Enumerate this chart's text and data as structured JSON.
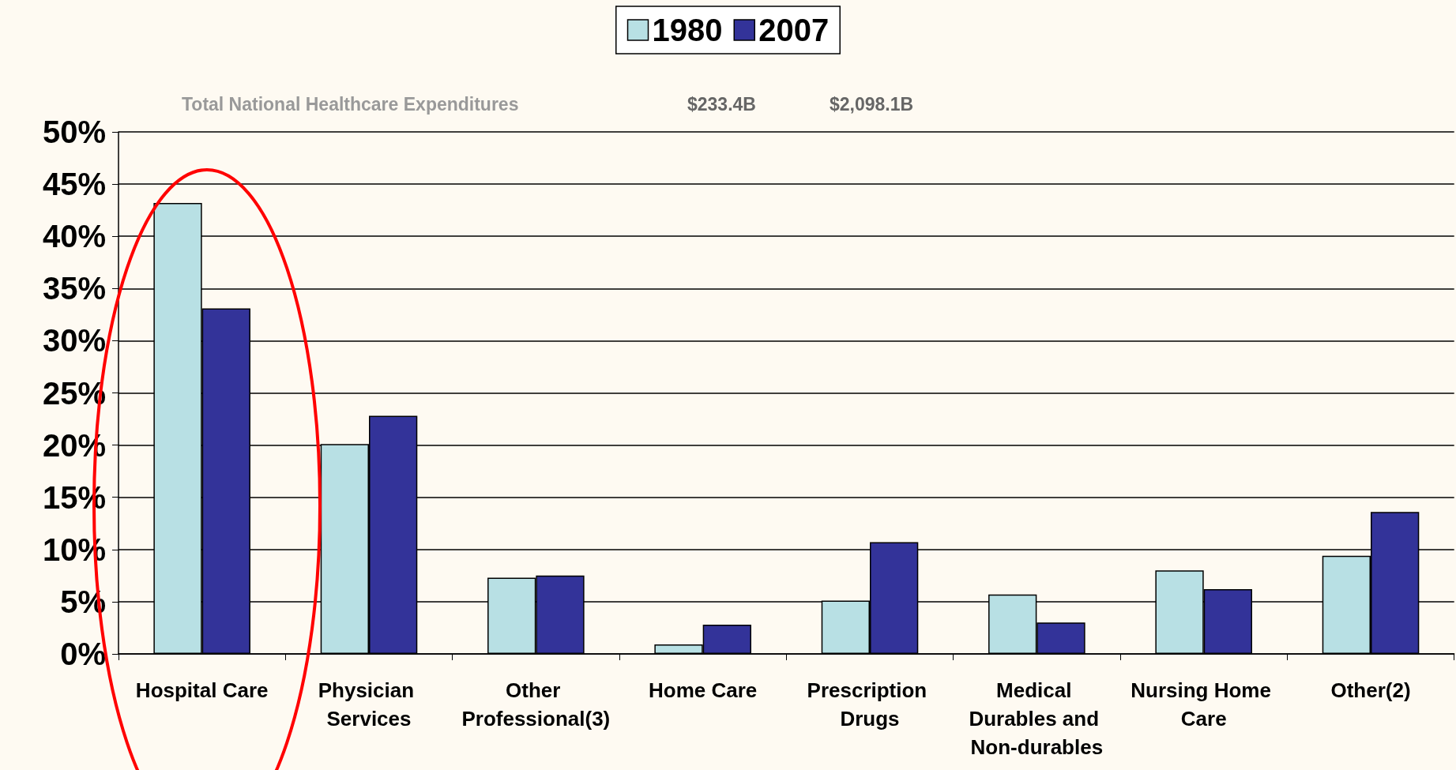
{
  "chart_data": {
    "type": "bar",
    "categories": [
      "Hospital Care",
      "Physician Services",
      "Other Professional(3)",
      "Home Care",
      "Prescription Drugs",
      "Medical Durables and Non-durables",
      "Nursing Home Care",
      "Other(2)"
    ],
    "series": [
      {
        "name": "1980",
        "color": "#b8e0e4",
        "values": [
          43.2,
          20.1,
          7.3,
          0.9,
          5.1,
          5.7,
          8.0,
          9.4
        ]
      },
      {
        "name": "2007",
        "color": "#333399",
        "values": [
          33.1,
          22.8,
          7.5,
          2.8,
          10.7,
          3.0,
          6.2,
          13.6
        ]
      }
    ],
    "ylim": [
      0,
      50
    ],
    "yticks": [
      {
        "value": 0,
        "label": "0%"
      },
      {
        "value": 5,
        "label": "5%"
      },
      {
        "value": 10,
        "label": "10%"
      },
      {
        "value": 15,
        "label": "15%"
      },
      {
        "value": 20,
        "label": "20%"
      },
      {
        "value": 25,
        "label": "25%"
      },
      {
        "value": 30,
        "label": "30%"
      },
      {
        "value": 35,
        "label": "35%"
      },
      {
        "value": 40,
        "label": "40%"
      },
      {
        "value": 45,
        "label": "45%"
      },
      {
        "value": 50,
        "label": "50%"
      }
    ],
    "grid": "y",
    "legend": "top",
    "annotations": [
      "Total National Healthcare Expenditures",
      "$233.4B",
      "$2,098.1B"
    ]
  }
}
